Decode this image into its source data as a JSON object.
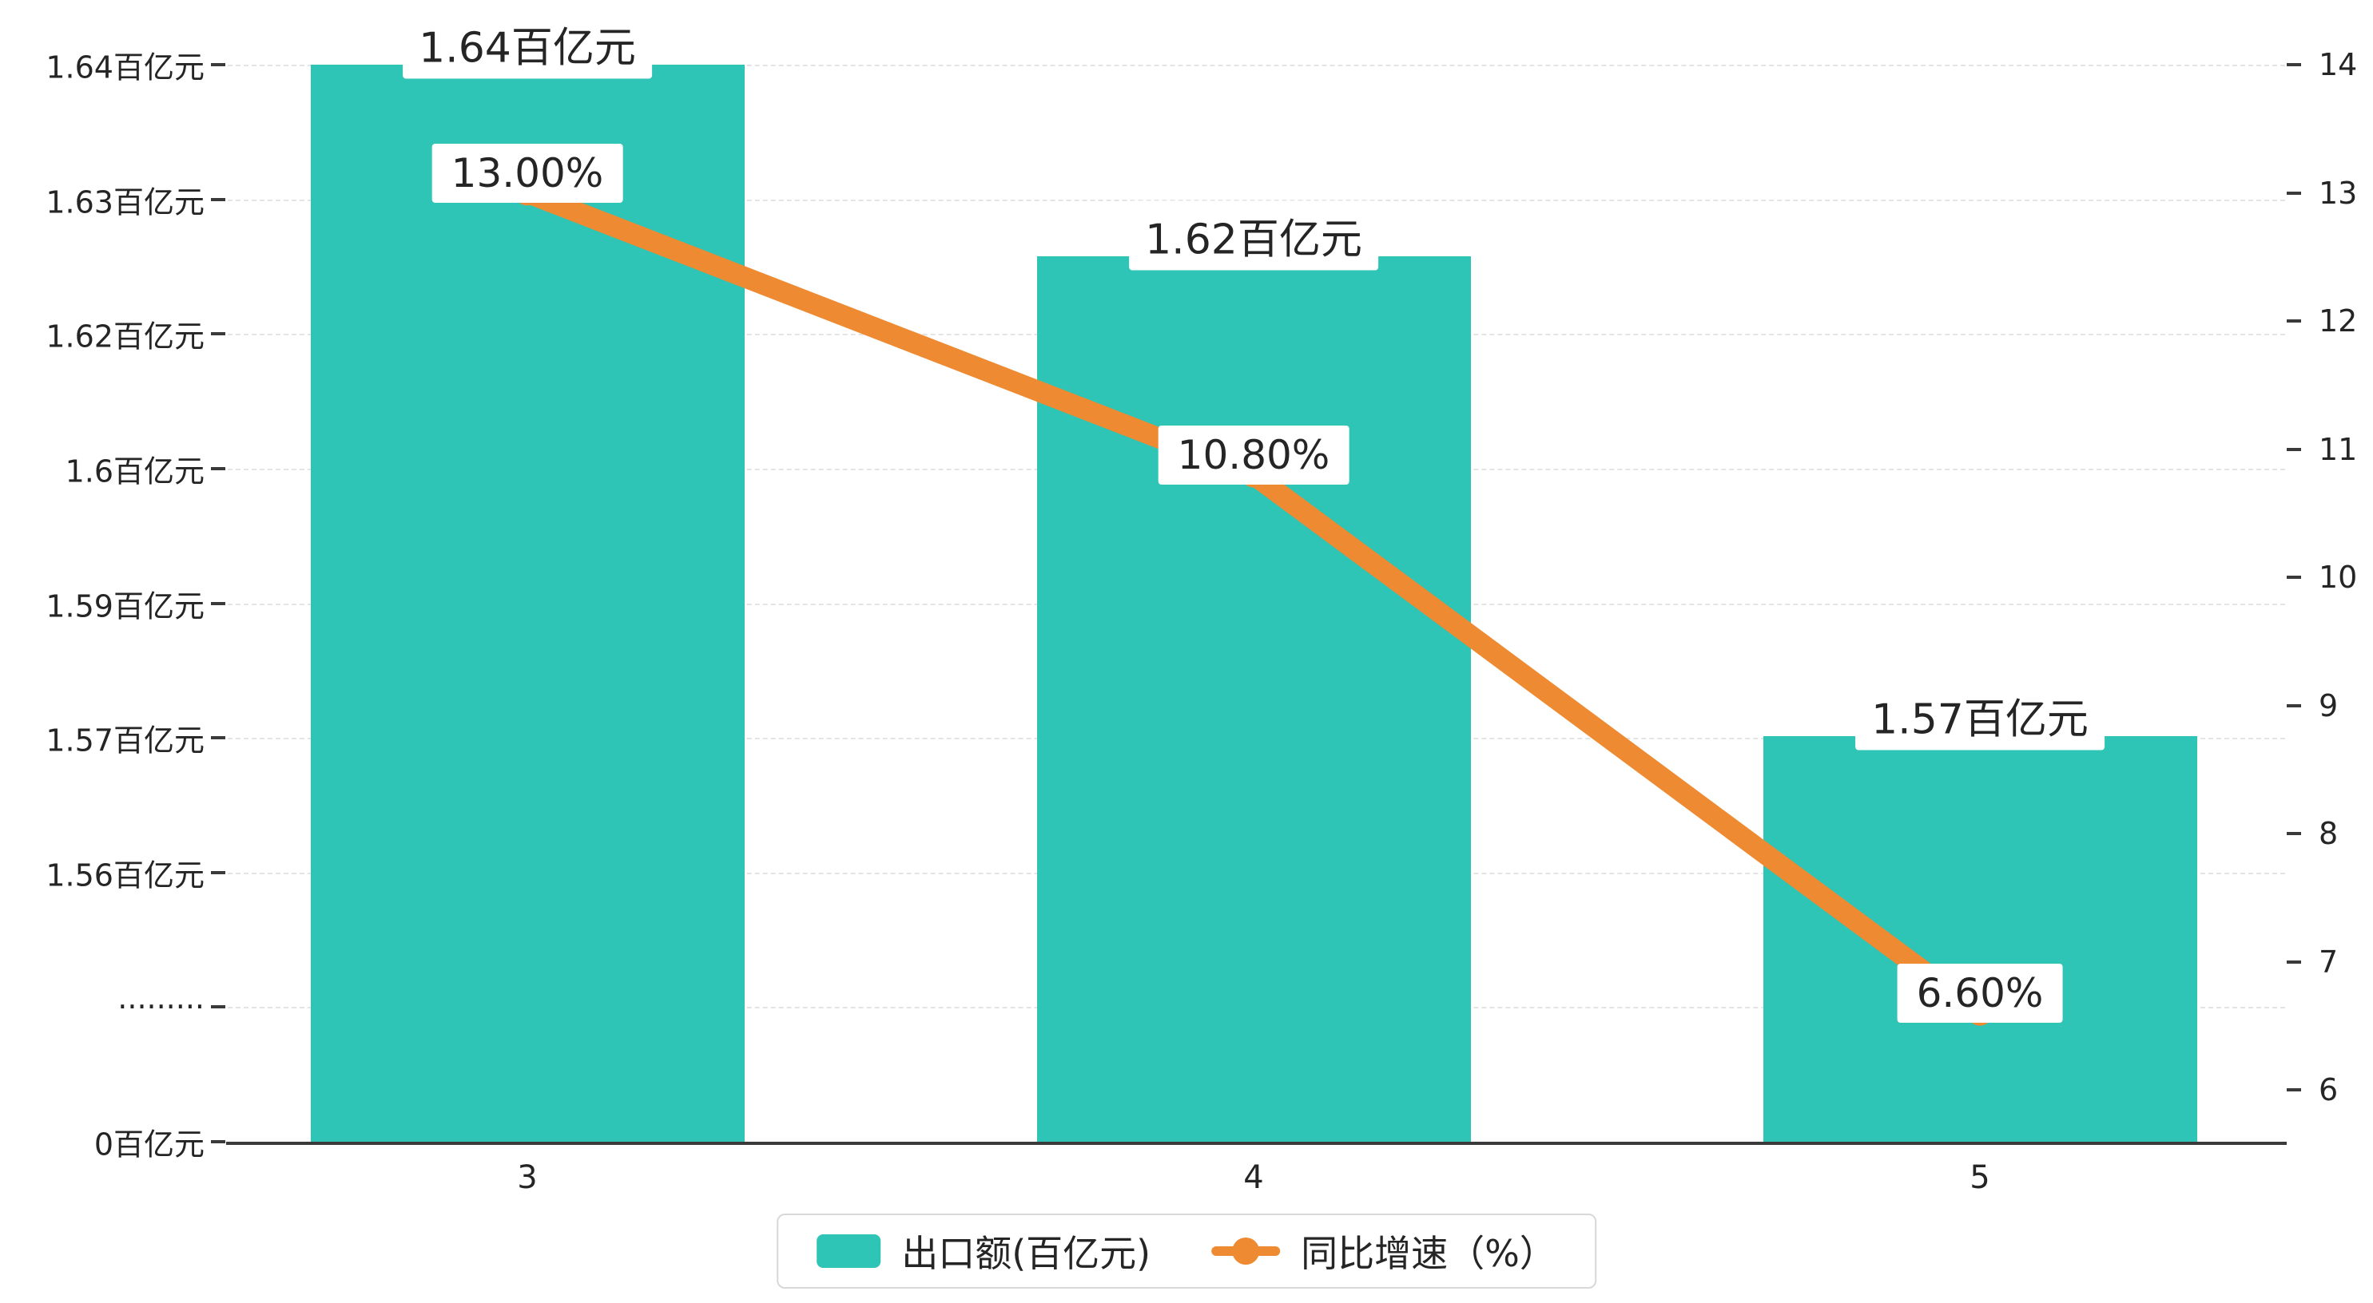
{
  "chart_data": {
    "type": "bar+line dual-axis",
    "title": "",
    "categories": [
      "3",
      "4",
      "5"
    ],
    "series": [
      {
        "name": "出口额(百亿元)",
        "type": "bar",
        "axis": "left",
        "values": [
          1.64,
          1.62,
          1.57
        ],
        "data_labels": [
          "1.64百亿元",
          "1.62百亿元",
          "1.57百亿元"
        ]
      },
      {
        "name": "同比增速（%）",
        "type": "line",
        "axis": "right",
        "values": [
          13.0,
          10.8,
          6.6
        ],
        "data_labels": [
          "13.00%",
          "10.80%",
          "6.60%"
        ]
      }
    ],
    "left_axis": {
      "tick_labels_top_to_bottom": [
        "1.64百亿元",
        "1.63百亿元",
        "1.62百亿元",
        "1.6百亿元",
        "1.59百亿元",
        "1.57百亿元",
        "1.56百亿元",
        "·········",
        "0百亿元"
      ],
      "broken_axis": true
    },
    "right_axis": {
      "tick_labels_top_to_bottom": [
        "14",
        "13",
        "12",
        "11",
        "10",
        "9",
        "8",
        "7",
        "6"
      ],
      "min": 6,
      "max": 14
    },
    "x_axis": {
      "tick_labels": [
        "3",
        "4",
        "5"
      ]
    },
    "legend": {
      "position": "bottom-center",
      "items": [
        {
          "label": "出口额(百亿元)",
          "marker": "bar"
        },
        {
          "label": "同比增速（%）",
          "marker": "line"
        }
      ]
    },
    "grid": "dashed horizontal gridlines on",
    "colors": {
      "bar": "#2EC4B6",
      "line": "#EE8A31",
      "text": "#252525",
      "axis": "#3a3a3a",
      "gridline": "#e4e4e4",
      "label_bg": "#ffffff"
    }
  }
}
